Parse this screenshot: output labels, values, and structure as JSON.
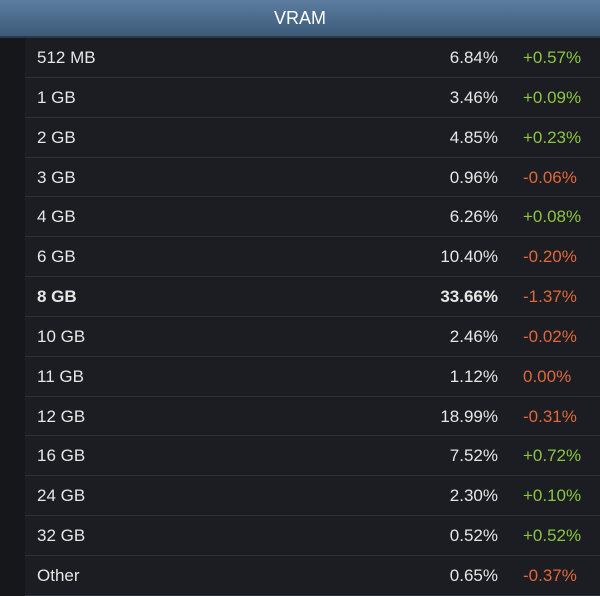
{
  "header": {
    "title": "VRAM"
  },
  "table": {
    "rows": [
      [
        "512 MB",
        "6.84%",
        "+0.57%"
      ],
      [
        "1 GB",
        "3.46%",
        "+0.09%"
      ],
      [
        "2 GB",
        "4.85%",
        "+0.23%"
      ],
      [
        "3 GB",
        "0.96%",
        "-0.06%"
      ],
      [
        "4 GB",
        "6.26%",
        "+0.08%"
      ],
      [
        "6 GB",
        "10.40%",
        "-0.20%"
      ],
      [
        "8 GB",
        "33.66%",
        "-1.37%"
      ],
      [
        "10 GB",
        "2.46%",
        "-0.02%"
      ],
      [
        "11 GB",
        "1.12%",
        "0.00%"
      ],
      [
        "12 GB",
        "18.99%",
        "-0.31%"
      ],
      [
        "16 GB",
        "7.52%",
        "+0.72%"
      ],
      [
        "24 GB",
        "2.30%",
        "+0.10%"
      ],
      [
        "32 GB",
        "0.52%",
        "+0.52%"
      ],
      [
        "Other",
        "0.65%",
        "-0.37%"
      ]
    ]
  }
}
